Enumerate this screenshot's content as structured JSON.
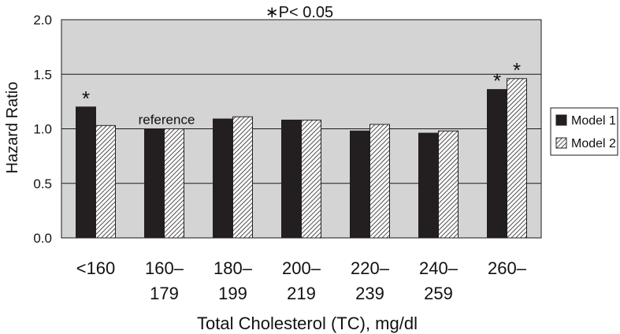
{
  "chart_data": {
    "type": "bar",
    "title": "∗P< 0.05",
    "xlabel": "Total Cholesterol (TC), mg/dl",
    "ylabel": "Hazard Ratio",
    "ylim": [
      0,
      2.0
    ],
    "yticks": [
      "0.0",
      "0.5",
      "1.0",
      "1.5",
      "2.0"
    ],
    "grid": true,
    "legend_position": "right",
    "categories": [
      [
        "<160",
        ""
      ],
      [
        "160–",
        "179"
      ],
      [
        "180–",
        "199"
      ],
      [
        "200–",
        "219"
      ],
      [
        "220–",
        "239"
      ],
      [
        "240–",
        "259"
      ],
      [
        "260–",
        ""
      ]
    ],
    "series": [
      {
        "name": "Model 1",
        "values": [
          1.2,
          1.0,
          1.09,
          1.08,
          0.98,
          0.96,
          1.36
        ],
        "star": [
          true,
          false,
          false,
          false,
          false,
          false,
          true
        ],
        "fill": "solid"
      },
      {
        "name": "Model 2",
        "values": [
          1.03,
          1.0,
          1.11,
          1.08,
          1.04,
          0.98,
          1.46
        ],
        "star": [
          false,
          false,
          false,
          false,
          false,
          false,
          true
        ],
        "fill": "hatched"
      }
    ],
    "annotations": [
      {
        "text": "reference",
        "category_index": 1
      }
    ],
    "colors": {
      "plot_bg": "#d4d4d4",
      "bar_dark": "#231f20",
      "frame": "#1a1a1a"
    }
  }
}
